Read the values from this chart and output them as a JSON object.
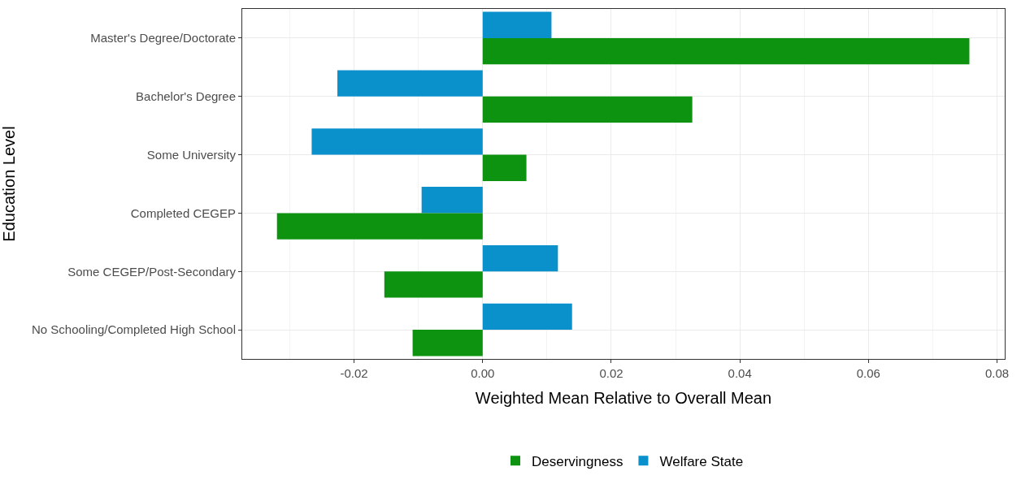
{
  "chart_data": {
    "type": "bar",
    "orientation": "horizontal",
    "xlabel": "Weighted Mean Relative to Overall Mean",
    "ylabel": "Education Level",
    "categories": [
      "Master's Degree/Doctorate",
      "Bachelor's Degree",
      "Some University",
      "Completed CEGEP",
      "Some CEGEP/Post-Secondary",
      "No Schooling/Completed High School"
    ],
    "series": [
      {
        "name": "Deservingness",
        "color": "#0d9310",
        "values": [
          0.0757,
          0.0326,
          0.0068,
          -0.032,
          -0.0153,
          -0.0109
        ]
      },
      {
        "name": "Welfare State",
        "color": "#0a90cb",
        "values": [
          0.0107,
          -0.0226,
          -0.0266,
          -0.0095,
          0.0117,
          0.0139
        ]
      }
    ],
    "xlim": [
      -0.0374,
      0.0812
    ],
    "xticks": [
      {
        "value": -0.02,
        "label": "-0.02"
      },
      {
        "value": 0,
        "label": "0.00"
      },
      {
        "value": 0.02,
        "label": "0.02"
      },
      {
        "value": 0.04,
        "label": "0.04"
      },
      {
        "value": 0.06,
        "label": "0.06"
      },
      {
        "value": 0.08,
        "label": "0.08"
      }
    ],
    "grid": true,
    "legend": "bottom"
  }
}
